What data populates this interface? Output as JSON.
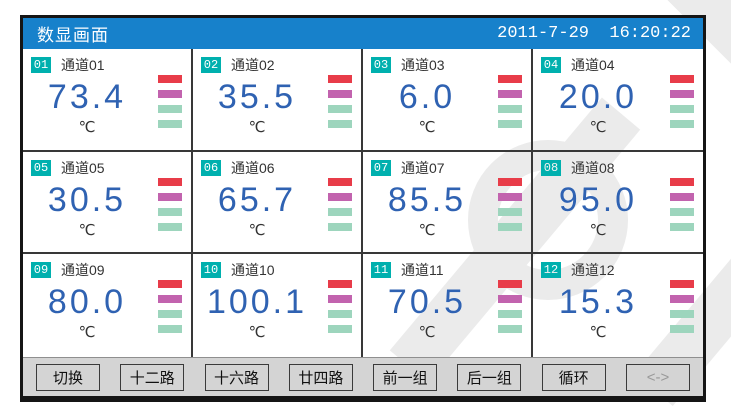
{
  "window": {
    "title": "数显画面",
    "datetime": "2011-7-29  16:20:22"
  },
  "channels": [
    {
      "id": "01",
      "label": "通道01",
      "value": "73.4",
      "unit": "℃"
    },
    {
      "id": "02",
      "label": "通道02",
      "value": "35.5",
      "unit": "℃"
    },
    {
      "id": "03",
      "label": "通道03",
      "value": "6.0",
      "unit": "℃"
    },
    {
      "id": "04",
      "label": "通道04",
      "value": "20.0",
      "unit": "℃"
    },
    {
      "id": "05",
      "label": "通道05",
      "value": "30.5",
      "unit": "℃"
    },
    {
      "id": "06",
      "label": "通道06",
      "value": "65.7",
      "unit": "℃"
    },
    {
      "id": "07",
      "label": "通道07",
      "value": "85.5",
      "unit": "℃"
    },
    {
      "id": "08",
      "label": "通道08",
      "value": "95.0",
      "unit": "℃"
    },
    {
      "id": "09",
      "label": "通道09",
      "value": "80.0",
      "unit": "℃"
    },
    {
      "id": "10",
      "label": "通道10",
      "value": "100.1",
      "unit": "℃"
    },
    {
      "id": "11",
      "label": "通道11",
      "value": "70.5",
      "unit": "℃"
    },
    {
      "id": "12",
      "label": "通道12",
      "value": "15.3",
      "unit": "℃"
    }
  ],
  "bar_indicator": {
    "segments": [
      "red",
      "magenta",
      "green",
      "green"
    ]
  },
  "footer": {
    "buttons": [
      {
        "label": "切换",
        "enabled": true
      },
      {
        "label": "十二路",
        "enabled": true
      },
      {
        "label": "十六路",
        "enabled": true
      },
      {
        "label": "廿四路",
        "enabled": true
      },
      {
        "label": "前一组",
        "enabled": true
      },
      {
        "label": "后一组",
        "enabled": true
      },
      {
        "label": "循环",
        "enabled": true
      },
      {
        "label": "<->",
        "enabled": false
      }
    ]
  },
  "colors": {
    "header-bg": "#1781cb",
    "header-text": "#ffffff",
    "value-text": "#2f62b2",
    "badge-bg": "#00b0ae",
    "badge-text": "#ffffff",
    "label-text": "#333333",
    "bar-red": "#e83c49",
    "bar-magenta": "#c263ae",
    "bar-green": "#9dd5bd",
    "grid-line": "#383838",
    "footer-bg": "#d4d4d4",
    "button-text": "#111111",
    "button-disabled-text": "#999999",
    "panel-border": "#151515"
  }
}
